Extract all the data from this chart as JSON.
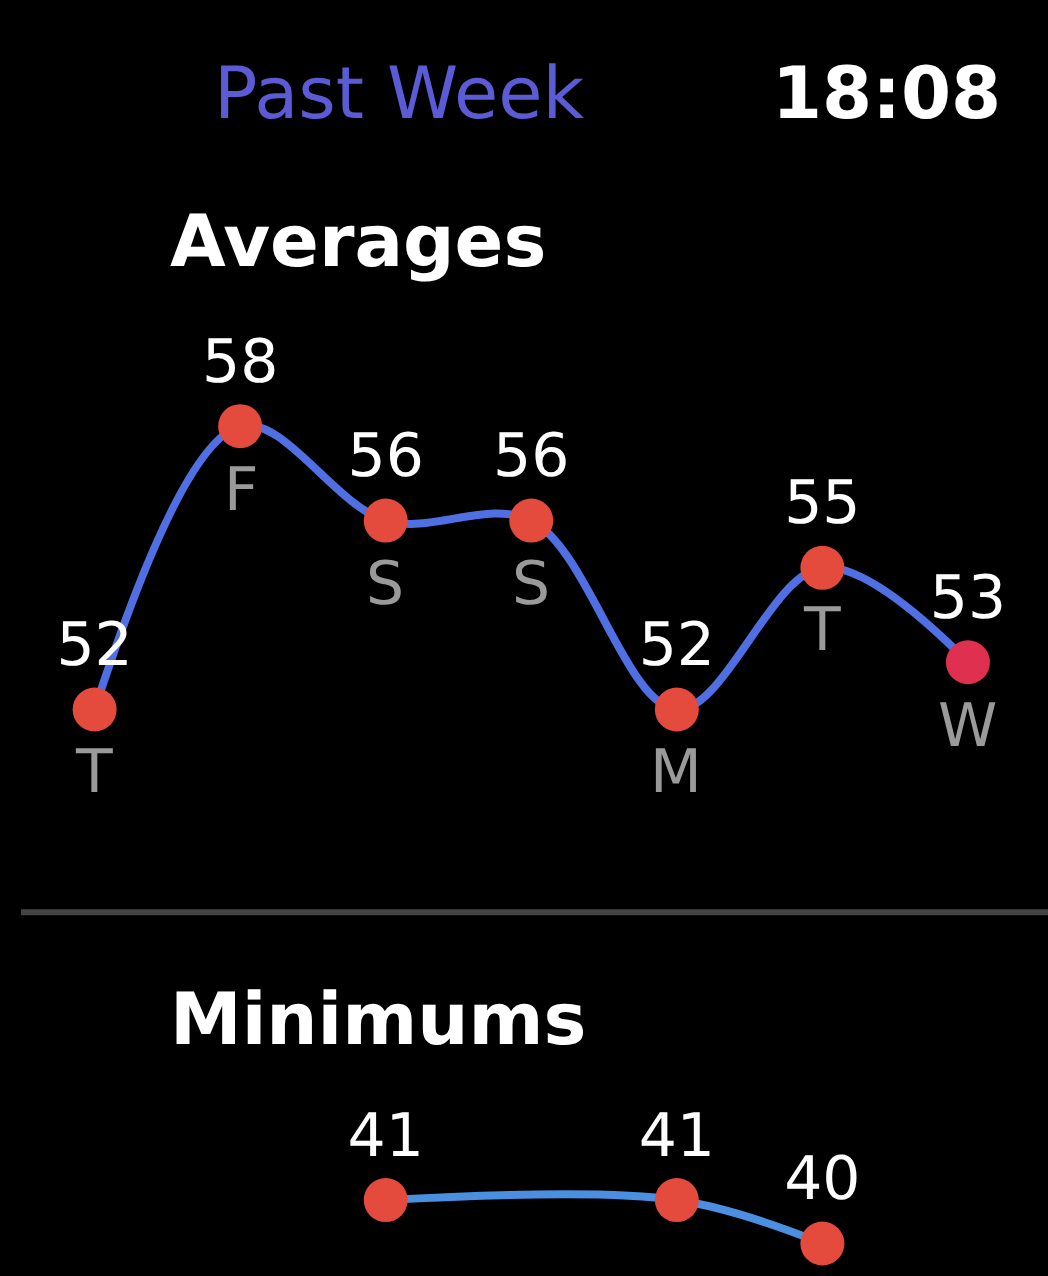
{
  "chart_data": [
    {
      "type": "line",
      "title": "Averages",
      "annotations": [
        "Past Week",
        "18:08"
      ],
      "categories": [
        "T",
        "F",
        "S",
        "S",
        "M",
        "T",
        "W"
      ],
      "series": [
        {
          "color": "#4f6fe3",
          "colors": [
            "#e54b3c",
            "#e54b3c",
            "#e54b3c",
            "#e54b3c",
            "#e54b3c",
            "#e54b3c",
            "#e0304f"
          ],
          "values": [
            52,
            58,
            56,
            56,
            52,
            55,
            53
          ]
        }
      ],
      "data_labels": true,
      "marker": "circle",
      "line_style": "solid",
      "tick_labels": "x"
    },
    {
      "type": "line",
      "title": "Minimums",
      "categories": [
        null,
        null,
        null,
        null,
        null,
        null,
        null
      ],
      "series": [
        {
          "color": "#4a8fe0",
          "colors": [
            "#e54b3c",
            "#e54b3c",
            "#e54b3c",
            "#e54b3c",
            "#e54b3c",
            "#e54b3c",
            "#e54b3c"
          ],
          "values": [
            null,
            null,
            41,
            null,
            41,
            40,
            null
          ]
        }
      ],
      "data_labels": true,
      "marker": "circle",
      "line_style": "solid",
      "tick_labels": false
    }
  ]
}
